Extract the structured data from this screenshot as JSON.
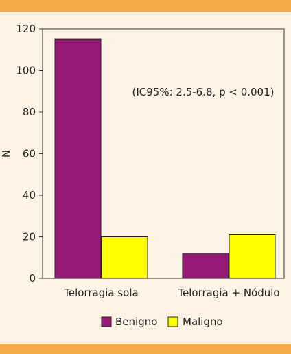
{
  "colors": {
    "background": "#fdf3e5",
    "band": "#f5a947",
    "benigno": "#951a76",
    "maligno": "#ffff00",
    "axis": "#333333"
  },
  "chart_data": {
    "type": "bar",
    "title": "",
    "xlabel": "",
    "ylabel": "N",
    "ylim": [
      0,
      120
    ],
    "yticks": [
      0,
      20,
      40,
      60,
      80,
      100,
      120
    ],
    "categories": [
      "Telorragia sola",
      "Telorragia + Nódulo"
    ],
    "series": [
      {
        "name": "Benigno",
        "values": [
          115,
          12
        ]
      },
      {
        "name": "Maligno",
        "values": [
          20,
          21
        ]
      }
    ],
    "annotation": "(IC95%: 2.5-6.8, p < 0.001)",
    "legend": {
      "placement": "bottom"
    },
    "grid": false
  }
}
